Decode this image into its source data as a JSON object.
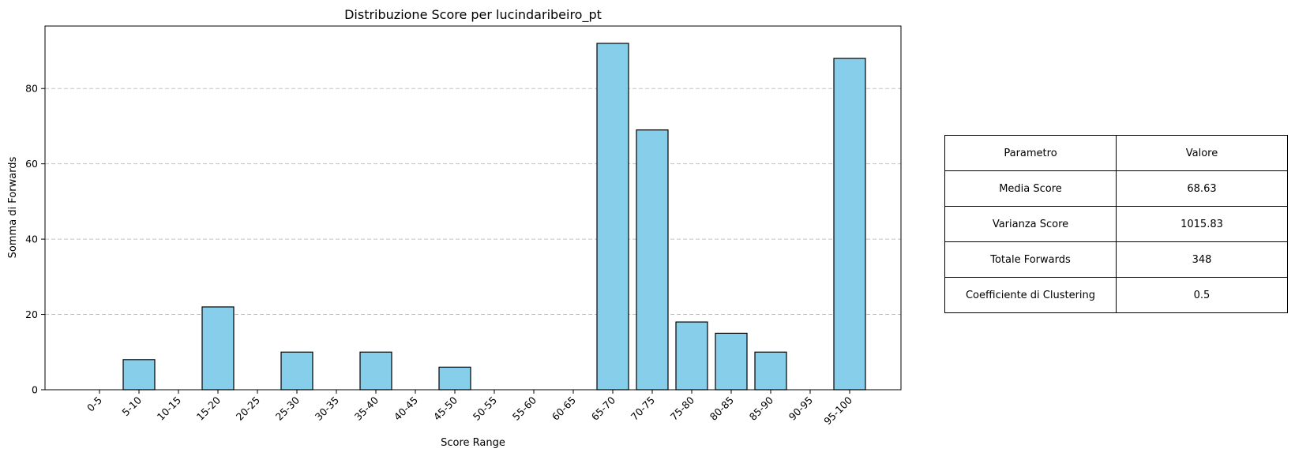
{
  "chart_data": {
    "type": "bar",
    "title": "Distribuzione Score per lucindaribeiro_pt",
    "xlabel": "Score Range",
    "ylabel": "Somma di Forwards",
    "categories": [
      "0-5",
      "5-10",
      "10-15",
      "15-20",
      "20-25",
      "25-30",
      "30-35",
      "35-40",
      "40-45",
      "45-50",
      "50-55",
      "55-60",
      "60-65",
      "65-70",
      "70-75",
      "75-80",
      "80-85",
      "85-90",
      "90-95",
      "95-100"
    ],
    "values": [
      0,
      8,
      0,
      22,
      0,
      10,
      0,
      10,
      0,
      6,
      0,
      0,
      0,
      92,
      69,
      18,
      15,
      10,
      0,
      88
    ],
    "ylim": [
      0,
      96.6
    ],
    "yticks": [
      0,
      20,
      40,
      60,
      80
    ],
    "grid": "y-dashed",
    "bar_color": "#87CEEB",
    "edge_color": "#000000",
    "grid_color": "#c0c0c0"
  },
  "table": {
    "rows": [
      [
        "Parametro",
        "Valore"
      ],
      [
        "Media Score",
        "68.63"
      ],
      [
        "Varianza Score",
        "1015.83"
      ],
      [
        "Totale Forwards",
        "348"
      ],
      [
        "Coefficiente di Clustering",
        "0.5"
      ]
    ]
  }
}
